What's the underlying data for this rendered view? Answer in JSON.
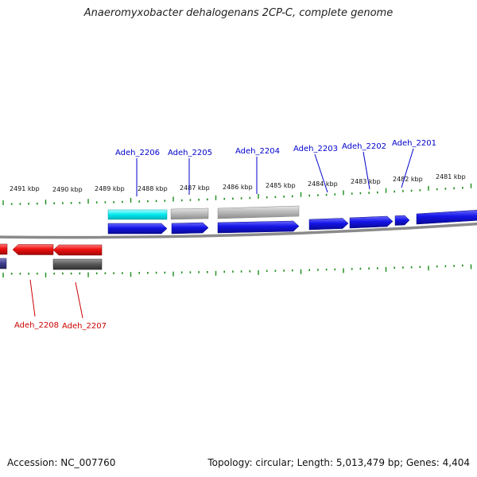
{
  "title": "Anaeromyxobacter dehalogenans 2CP-C, complete genome",
  "footer": {
    "accession": "Accession: NC_007760",
    "stats": "Topology: circular; Length: 5,013,479 bp; Genes: 4,404"
  },
  "colors": {
    "forward_gene": "#1010e0",
    "reverse_gene": "#ee1010",
    "rna_gene": "#00e0e8",
    "pseudo_gene": "#b8b8b8",
    "reverse_other": "#555555",
    "reverse_purple": "#3c3c8c",
    "backbone": "#808080",
    "ticks": "#1a8c1a",
    "forward_label": "#0000cc",
    "reverse_label": "#cc0000"
  },
  "ticks": [
    "2491 kbp",
    "2490 kbp",
    "2489 kbp",
    "2488 kbp",
    "2487 kbp",
    "2486 kbp",
    "2485 kbp",
    "2484 kbp",
    "2483 kbp",
    "2482 kbp",
    "2481 kbp"
  ],
  "genes_forward": [
    {
      "id": "Adeh_2206"
    },
    {
      "id": "Adeh_2205"
    },
    {
      "id": "Adeh_2204"
    },
    {
      "id": "Adeh_2203"
    },
    {
      "id": "Adeh_2202"
    },
    {
      "id": "Adeh_2201"
    }
  ],
  "genes_reverse": [
    {
      "id": "Adeh_2208"
    },
    {
      "id": "Adeh_2207"
    }
  ]
}
